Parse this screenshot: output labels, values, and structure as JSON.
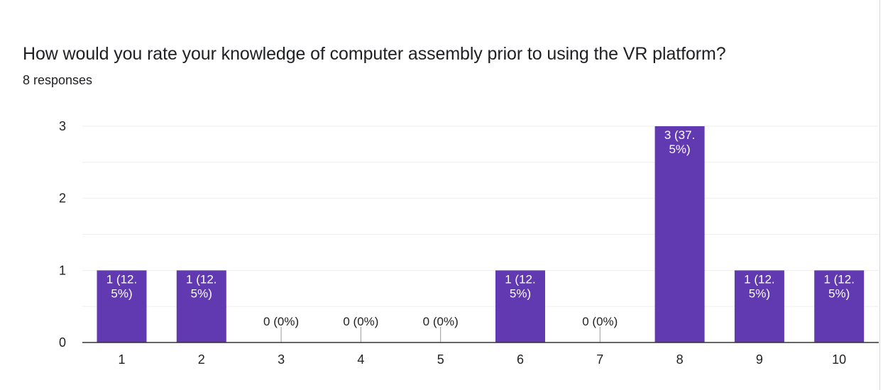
{
  "question": {
    "title": "How would you rate your knowledge of computer assembly prior to using the VR platform?",
    "responses": "8 responses"
  },
  "colors": {
    "bar": "#6139b0",
    "bar_label_inside": "#ffffff",
    "bar_label_outside": "#222222",
    "gridline": "#eeeeee",
    "axis": "#333333"
  },
  "chart_data": {
    "type": "bar",
    "title": "How would you rate your knowledge of computer assembly prior to using the VR platform?",
    "categories": [
      "1",
      "2",
      "3",
      "4",
      "5",
      "6",
      "7",
      "8",
      "9",
      "10"
    ],
    "values": [
      1,
      1,
      0,
      0,
      0,
      1,
      0,
      3,
      1,
      1
    ],
    "data_labels": [
      [
        "1 (12.",
        "5%)"
      ],
      [
        "1 (12.",
        "5%)"
      ],
      [
        "0 (0%)"
      ],
      [
        "0 (0%)"
      ],
      [
        "0 (0%)"
      ],
      [
        "1 (12.",
        "5%)"
      ],
      [
        "0 (0%)"
      ],
      [
        "3 (37.",
        "5%)"
      ],
      [
        "1 (12.",
        "5%)"
      ],
      [
        "1 (12.",
        "5%)"
      ]
    ],
    "y_ticks": [
      "0",
      "1",
      "2",
      "3"
    ],
    "ylim": [
      0,
      3
    ],
    "xlabel": "",
    "ylabel": "",
    "grid": true
  }
}
